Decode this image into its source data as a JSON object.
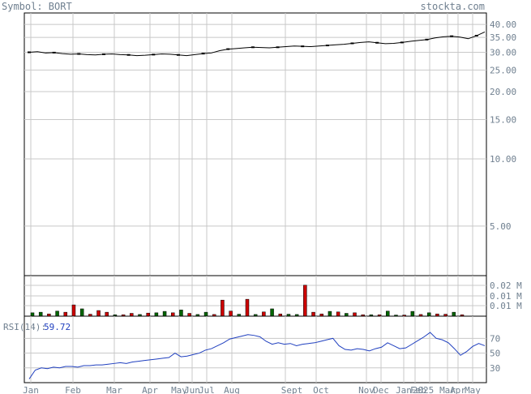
{
  "header": {
    "symbol_label": "Symbol: BORT",
    "site": "stockta.com"
  },
  "colors": {
    "grid": "#c8c8c8",
    "text": "#708090",
    "price": "#000000",
    "volume_up": "#006400",
    "volume_down": "#cc0000",
    "rsi_line": "#1f3fbf",
    "rsi_value": "#1f3fbf"
  },
  "chart_data": [
    {
      "type": "line",
      "title": "",
      "yscale": "log",
      "ylim": [
        3,
        45
      ],
      "y_ticks": [
        "40.00",
        "35.00",
        "30.00",
        "25.00",
        "20.00",
        "15.00",
        "10.00",
        "5.00"
      ],
      "y_tick_values": [
        40,
        35,
        30,
        25,
        20,
        15,
        10,
        5
      ],
      "x_tick_labels": [
        "Jan",
        "Feb",
        "Mar",
        "Apr",
        "May",
        "Jun",
        "Jul",
        "Aug",
        "Sept",
        "Oct",
        "Nov",
        "Dec",
        "Jan",
        "2025",
        "Feb",
        "Mar",
        "Apr",
        "May"
      ],
      "series": [
        {
          "values": [
            30.0,
            30.2,
            29.8,
            29.9,
            29.6,
            29.4,
            29.5,
            29.3,
            29.2,
            29.4,
            29.5,
            29.3,
            29.2,
            29.0,
            29.1,
            29.3,
            29.5,
            29.4,
            29.2,
            29.0,
            29.3,
            29.6,
            29.8,
            30.5,
            31.0,
            31.2,
            31.4,
            31.6,
            31.5,
            31.4,
            31.6,
            31.8,
            32.0,
            31.9,
            31.8,
            32.0,
            32.2,
            32.4,
            32.6,
            32.9,
            33.2,
            33.4,
            33.1,
            32.8,
            32.9,
            33.2,
            33.6,
            33.9,
            34.2,
            34.8,
            35.2,
            35.4,
            35.1,
            34.5,
            35.6,
            37.0
          ]
        }
      ]
    },
    {
      "type": "bar",
      "title": "",
      "y_ticks": [
        "0.02 M",
        "0.01 M",
        "0.01 M"
      ],
      "series": [
        {
          "name": "",
          "up": [
            1,
            1,
            0,
            1,
            0,
            0,
            1,
            0,
            0,
            0,
            1,
            0,
            0,
            1,
            0,
            1,
            1,
            0,
            1,
            0,
            1,
            1,
            0,
            0,
            0,
            1,
            0,
            1,
            0,
            1,
            0,
            1,
            1,
            0,
            0,
            0,
            1,
            0,
            1,
            0,
            0,
            1,
            0,
            1,
            1,
            0,
            1,
            0,
            1,
            0,
            0,
            1,
            0
          ],
          "values": [
            0.0012,
            0.0014,
            0.0008,
            0.0018,
            0.0014,
            0.004,
            0.0026,
            0.0007,
            0.002,
            0.0014,
            0.0005,
            0.0005,
            0.001,
            0.0006,
            0.0011,
            0.0012,
            0.0017,
            0.0012,
            0.0022,
            0.001,
            0.0006,
            0.0014,
            0.0006,
            0.0057,
            0.0018,
            0.0007,
            0.006,
            0.0006,
            0.0015,
            0.0026,
            0.0008,
            0.0007,
            0.0006,
            0.011,
            0.0014,
            0.0008,
            0.0017,
            0.0015,
            0.001,
            0.0012,
            0.0005,
            0.0005,
            0.0005,
            0.0018,
            0.0004,
            0.0004,
            0.0017,
            0.0006,
            0.0012,
            0.0008,
            0.0007,
            0.0014,
            0.0005
          ]
        }
      ]
    },
    {
      "type": "line",
      "title": "",
      "label": "RSI(14):",
      "value_label": "59.72",
      "ylim": [
        10,
        100
      ],
      "y_ticks": [
        "70",
        "50",
        "30"
      ],
      "y_tick_values": [
        70,
        50,
        30
      ],
      "series": [
        {
          "values": [
            15,
            27,
            30,
            29,
            31,
            30,
            32,
            32,
            31,
            33,
            33,
            34,
            34,
            35,
            36,
            37,
            36,
            38,
            39,
            40,
            41,
            42,
            43,
            44,
            50,
            45,
            46,
            48,
            50,
            54,
            56,
            60,
            64,
            69,
            71,
            73,
            75,
            74,
            72,
            66,
            62,
            64,
            62,
            63,
            60,
            62,
            63,
            64,
            66,
            68,
            70,
            60,
            55,
            54,
            56,
            55,
            53,
            56,
            58,
            64,
            60,
            56,
            57,
            62,
            67,
            72,
            78,
            70,
            68,
            64,
            56,
            47,
            52,
            59,
            63,
            60
          ]
        }
      ]
    }
  ]
}
